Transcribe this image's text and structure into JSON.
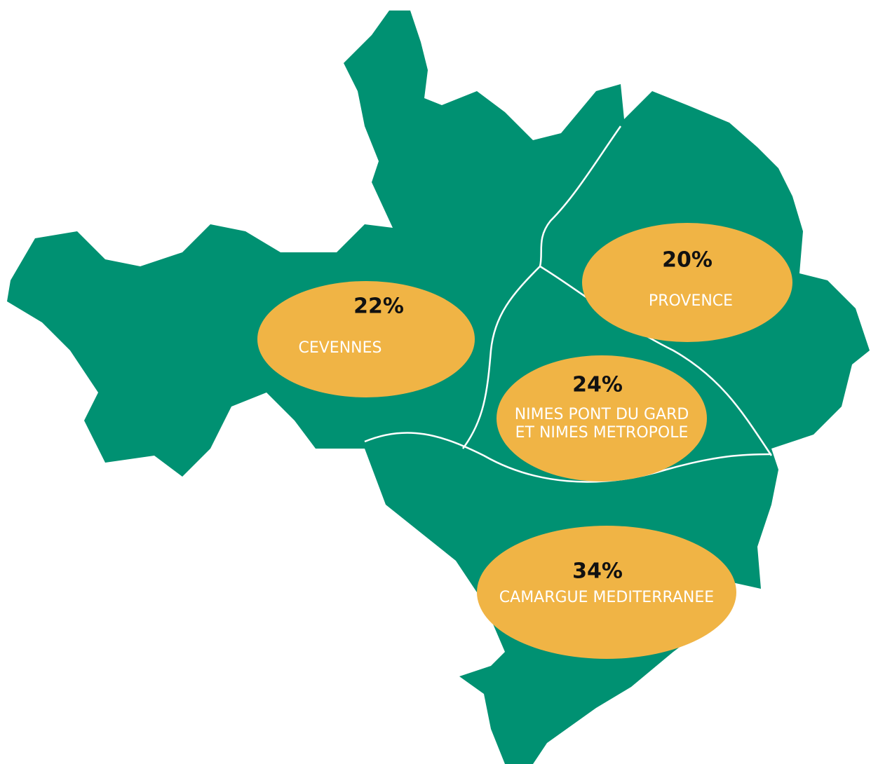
{
  "regions": [
    {
      "share": "22%",
      "name": [
        "CEVENNES"
      ]
    },
    {
      "share": "20%",
      "name": [
        "PROVENCE"
      ]
    },
    {
      "share": "24%",
      "name": [
        "NIMES PONT DU GARD",
        "ET NIMES METROPOLE"
      ]
    },
    {
      "share": "34%",
      "name": [
        "CAMARGUE MEDITERRANEE"
      ]
    }
  ]
}
